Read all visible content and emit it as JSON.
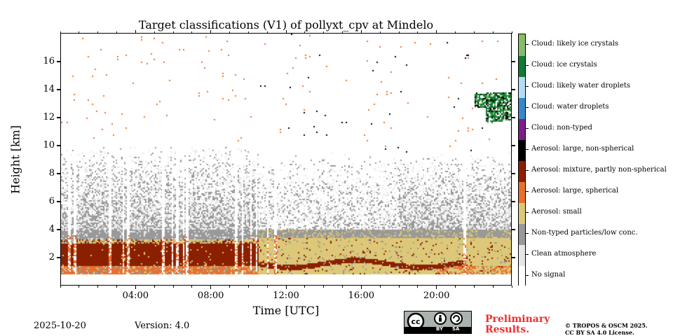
{
  "chart_data": {
    "type": "heatmap",
    "title": "Target classifications (V1) of pollyxt_cpv at Mindelo",
    "xlabel": "Time [UTC]",
    "ylabel": "Height [km]",
    "xlim_hours": [
      0,
      24
    ],
    "ylim_km": [
      0,
      18
    ],
    "x_ticks": [
      {
        "hour": 4,
        "label": "04:00"
      },
      {
        "hour": 8,
        "label": "08:00"
      },
      {
        "hour": 12,
        "label": "12:00"
      },
      {
        "hour": 16,
        "label": "16:00"
      },
      {
        "hour": 20,
        "label": "20:00"
      }
    ],
    "x_minor_tick_interval_hours": 1,
    "y_ticks": [
      {
        "km": 2,
        "label": "2"
      },
      {
        "km": 4,
        "label": "4"
      },
      {
        "km": 6,
        "label": "6"
      },
      {
        "km": 8,
        "label": "8"
      },
      {
        "km": 10,
        "label": "10"
      },
      {
        "km": 12,
        "label": "12"
      },
      {
        "km": 14,
        "label": "14"
      },
      {
        "km": 16,
        "label": "16"
      }
    ],
    "classes": [
      {
        "id": 0,
        "label": "No signal",
        "color": "#ffffff"
      },
      {
        "id": 1,
        "label": "Clean atmosphere",
        "color": "#e6e6e6"
      },
      {
        "id": 2,
        "label": "Non-typed particles/low conc.",
        "color": "#999999"
      },
      {
        "id": 3,
        "label": "Aerosol: small",
        "color": "#dcc878"
      },
      {
        "id": 4,
        "label": "Aerosol: large, spherical",
        "color": "#e8702f"
      },
      {
        "id": 5,
        "label": "Aerosol: mixture, partly non-spherical",
        "color": "#8b2000"
      },
      {
        "id": 6,
        "label": "Aerosol: large, non-spherical",
        "color": "#000000"
      },
      {
        "id": 7,
        "label": "Cloud: non-typed",
        "color": "#7b1f86"
      },
      {
        "id": 8,
        "label": "Cloud: water droplets",
        "color": "#3a87c8"
      },
      {
        "id": 9,
        "label": "Cloud: likely water droplets",
        "color": "#b4dcf5"
      },
      {
        "id": 10,
        "label": "Cloud: ice crystals",
        "color": "#137a36"
      },
      {
        "id": 11,
        "label": "Cloud: likely ice crystals",
        "color": "#86bc6a"
      }
    ],
    "layers": [
      {
        "class": "No signal",
        "from_km": 0,
        "to_km": 0.85,
        "note": "below lowest range bin"
      },
      {
        "class": "Aerosol: large, spherical",
        "from_km": 0.85,
        "to_km": 1.4,
        "hours": [
          0,
          24
        ]
      },
      {
        "class": "Aerosol: mixture, partly non-spherical",
        "from_km": 1.4,
        "to_km": 3.1,
        "hours": [
          0,
          10.5
        ]
      },
      {
        "class": "Aerosol: small",
        "from_km": 1.0,
        "to_km": 3.6,
        "hours": [
          10.5,
          24
        ]
      },
      {
        "class": "Aerosol: mixture, partly non-spherical",
        "note": "thin band ~1.3-2.0 km",
        "hours": [
          12,
          21.5
        ]
      },
      {
        "class": "Non-typed particles/low conc.",
        "from_km": 3.2,
        "to_km": 4.0,
        "hours": [
          0,
          24
        ]
      },
      {
        "class": "Clean atmosphere",
        "from_km": 4.0,
        "to_km": 10.0,
        "hours": [
          0,
          24
        ],
        "note": "speckled with non-typed"
      },
      {
        "class": "Cloud: ice crystals",
        "from_km": 11.5,
        "to_km": 13.8,
        "hours": [
          22,
          24
        ],
        "note": "cirrus patch"
      }
    ],
    "data_gaps_hours": [
      0.4,
      0.7,
      2.6,
      3.3,
      3.55,
      5.4,
      5.9,
      6.15,
      6.5,
      6.7,
      9.3,
      9.65,
      10.1,
      10.4,
      11.0,
      11.4,
      21.5
    ],
    "legend_placement": "right colorbar"
  },
  "footer": {
    "date": "2025-10-20",
    "version": "Version: 4.0",
    "preliminary": [
      "Preliminary",
      "Results."
    ],
    "copyright": [
      "© TROPOS & OSCM 2025.",
      "CC BY SA 4.0 License."
    ],
    "license_badge": {
      "top": "cc",
      "by": "BY",
      "sa": "SA"
    }
  }
}
